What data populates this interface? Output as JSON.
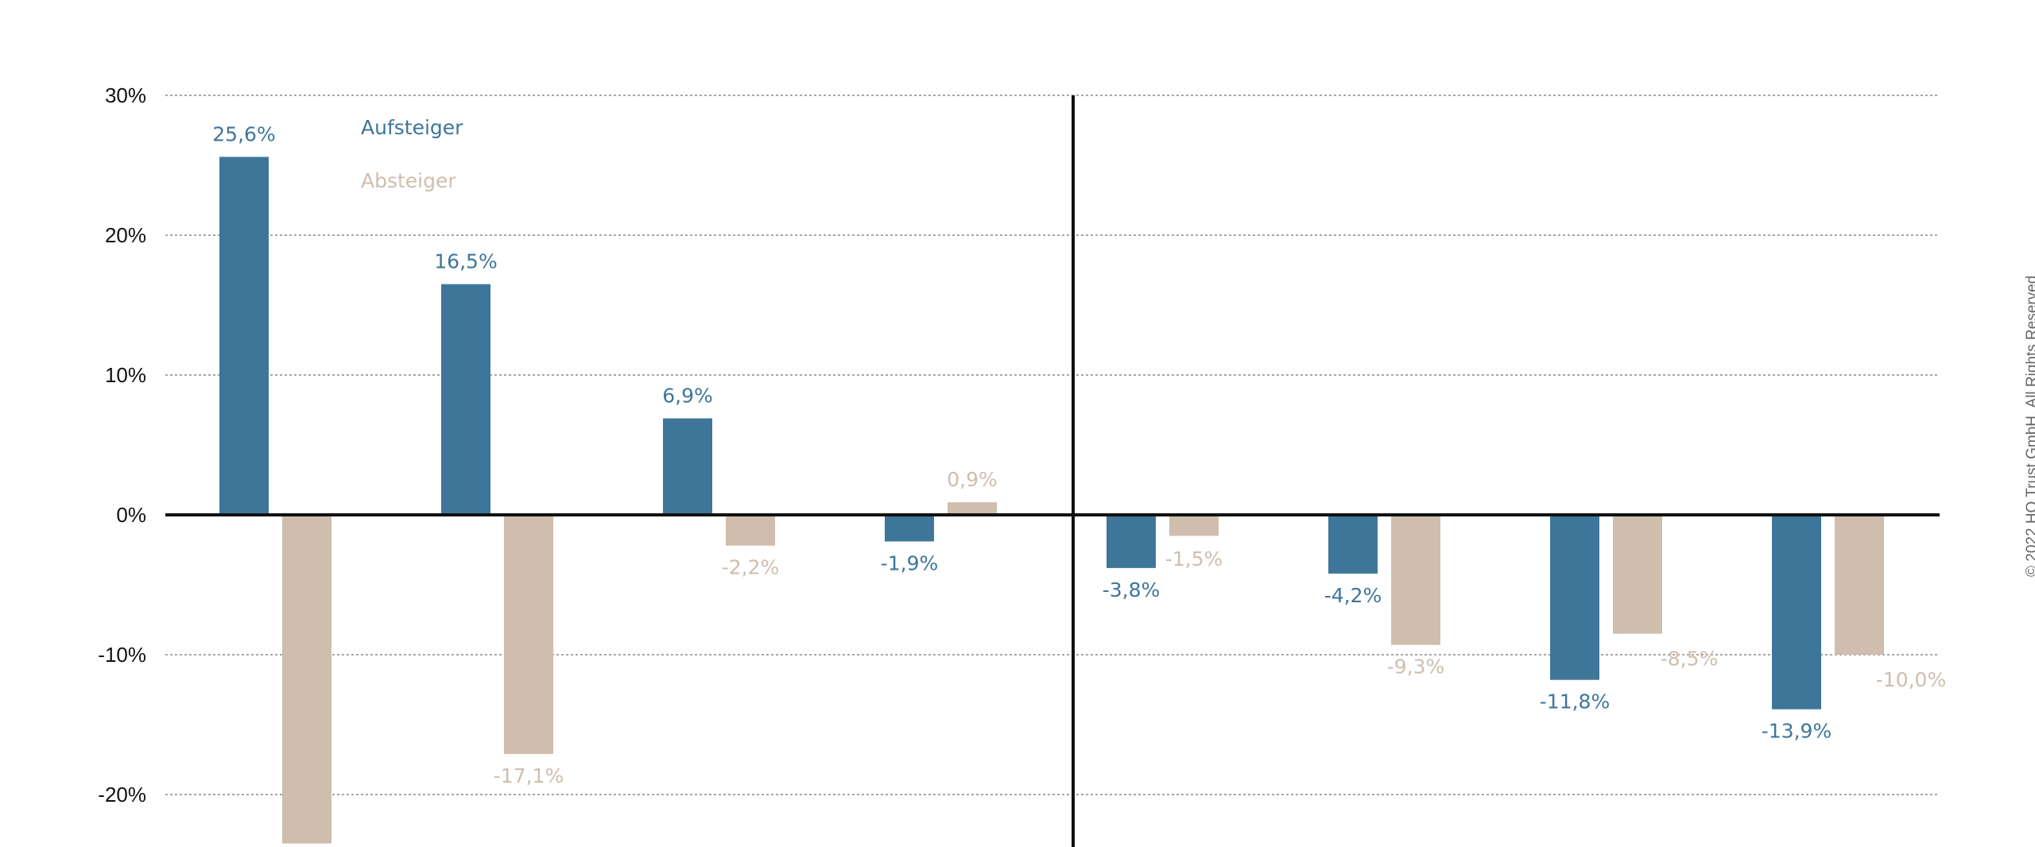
{
  "copyright": "© 2022 HQ Trust GmbH. All Rights Reserved.",
  "colors": {
    "aufsteiger": "#3e769a",
    "absteiger": "#cfbead",
    "axis": "#111111",
    "grid": "#888888"
  },
  "chart_data": {
    "type": "bar",
    "categories": [
      "",
      "",
      "",
      "",
      "",
      "",
      "",
      ""
    ],
    "series": [
      {
        "name": "Aufsteiger",
        "values": [
          25.6,
          16.5,
          6.9,
          -1.9,
          -3.8,
          -4.2,
          -11.8,
          -13.9
        ],
        "labels": [
          "25,6%",
          "16,5%",
          "6,9%",
          "-1,9%",
          "-3,8%",
          "-4,2%",
          "-11,8%",
          "-13,9%"
        ]
      },
      {
        "name": "Absteiger",
        "values": [
          -23.5,
          -17.1,
          -2.2,
          0.9,
          -1.5,
          -9.3,
          -8.5,
          -10.0
        ],
        "labels": [
          "",
          "-17,1%",
          "-2,2%",
          "0,9%",
          "-1,5%",
          "-9,3%",
          "-8,5%",
          "-10,0%"
        ]
      }
    ],
    "y_ticks": [
      {
        "value": 30,
        "label": "30%"
      },
      {
        "value": 20,
        "label": "20%"
      },
      {
        "value": 10,
        "label": "10%"
      },
      {
        "value": 0,
        "label": "0%"
      },
      {
        "value": -10,
        "label": "-10%"
      },
      {
        "value": -20,
        "label": "-20%"
      }
    ],
    "ylim": [
      -23.5,
      30
    ],
    "grid": true,
    "divider_after_category": 4,
    "legend_position": "top-left"
  }
}
